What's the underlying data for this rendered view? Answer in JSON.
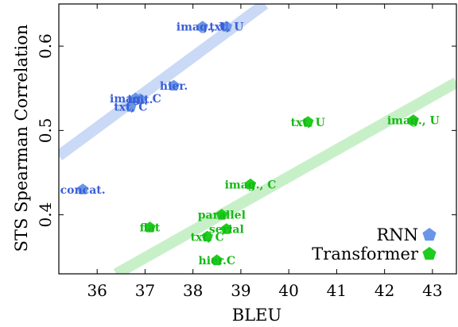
{
  "chart_data": {
    "type": "scatter",
    "title": "",
    "xlabel": "BLEU",
    "ylabel": "STS Spearman Correlation",
    "xlim": [
      35.2,
      43.5
    ],
    "ylim": [
      0.33,
      0.65
    ],
    "xticks": [
      36,
      37,
      38,
      39,
      40,
      41,
      42,
      43
    ],
    "yticks": [
      0.4,
      0.5,
      0.6
    ],
    "ytick_labels": [
      "0.4",
      "0.5",
      "0.6"
    ],
    "legend_position": "bottom-right",
    "grid": false,
    "series": [
      {
        "name": "RNN",
        "color": "#3a5fd8",
        "marker_color": "#6a96e8",
        "trend_color": "#c9d9f6",
        "trend_line": [
          [
            35.2,
            0.47
          ],
          [
            39.5,
            0.65
          ]
        ],
        "points": [
          {
            "label": "imag., U",
            "x": 38.2,
            "y": 0.623
          },
          {
            "label": "txt, U",
            "x": 38.7,
            "y": 0.623
          },
          {
            "label": "hier.",
            "x": 37.6,
            "y": 0.553
          },
          {
            "label": "imag., C",
            "x": 36.8,
            "y": 0.538
          },
          {
            "label": "init.",
            "x": 36.9,
            "y": 0.537
          },
          {
            "label": "txt, C",
            "x": 36.7,
            "y": 0.528
          },
          {
            "label": "concat.",
            "x": 35.7,
            "y": 0.43
          }
        ]
      },
      {
        "name": "Transformer",
        "color": "#16b916",
        "marker_color": "#1fcc1f",
        "trend_color": "#c8f0c8",
        "trend_line": [
          [
            36.4,
            0.33
          ],
          [
            43.5,
            0.557
          ]
        ],
        "points": [
          {
            "label": "txt, U",
            "x": 40.4,
            "y": 0.51
          },
          {
            "label": "imag., U",
            "x": 42.6,
            "y": 0.512
          },
          {
            "label": "imag., C",
            "x": 39.2,
            "y": 0.436
          },
          {
            "label": "parallel",
            "x": 38.6,
            "y": 0.4
          },
          {
            "label": "flat",
            "x": 37.1,
            "y": 0.385
          },
          {
            "label": "serial",
            "x": 38.7,
            "y": 0.383
          },
          {
            "label": "txt, C",
            "x": 38.3,
            "y": 0.374
          },
          {
            "label": "hier.C",
            "x": 38.5,
            "y": 0.346
          }
        ]
      }
    ]
  }
}
